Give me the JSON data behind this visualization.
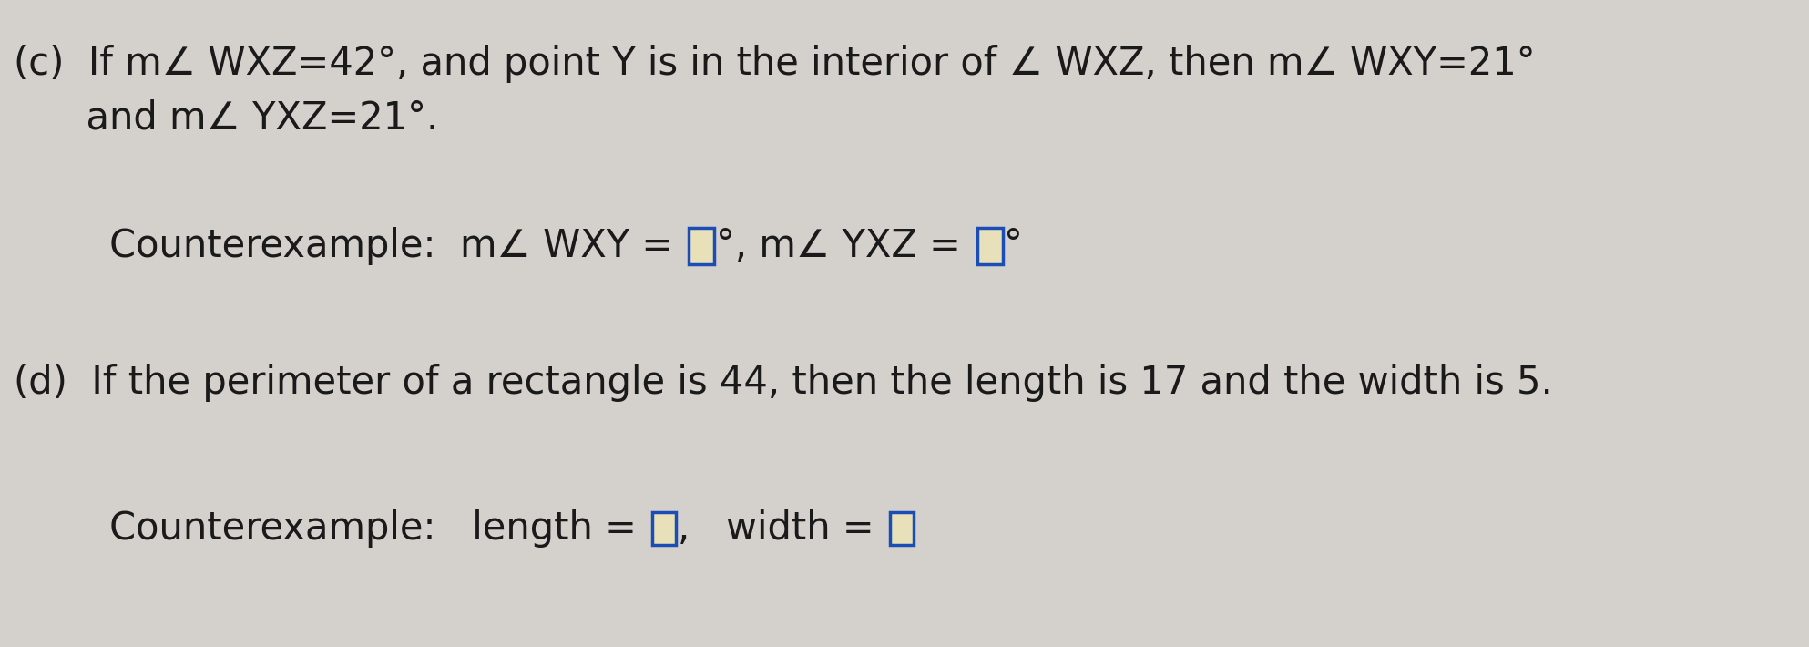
{
  "bg_color": "#d4d0cc",
  "text_color": "#1a1a1a",
  "box_fill": "#e8e0b8",
  "box_border": "#1a4db5",
  "figsize": [
    19.86,
    7.1
  ],
  "dpi": 100,
  "font_size": 30,
  "line1_a": "(c)  If ",
  "line1_b": "m",
  "line1_c": "∠ WXZ",
  "line1_d": "=42°, and point ",
  "line1_e": "Y",
  "line1_f": " is in the interior of ",
  "line1_g": "∠ WXZ",
  "line1_h": ", then ",
  "line1_i": "m",
  "line1_j": "∠ WXY",
  "line1_k": "=21°",
  "line2_a": "     and ",
  "line2_b": "m",
  "line2_c": "∠ YXZ",
  "line2_d": "=21°.",
  "line3_pre": "Counterexample:  ",
  "line3_m1": "m",
  "line3_angle1": "∠ WXY",
  "line3_eq1": " = ",
  "line3_deg1": "°, ",
  "line3_m2": "m",
  "line3_angle2": "∠ YXZ",
  "line3_eq2": " = ",
  "line3_deg2": "°",
  "line4": "(d)  If the perimeter of a rectangle is 44, then the length is 17 and the width is 5.",
  "line5_pre": "Counterexample:   length  = ",
  "line5_mid": ",   width  = "
}
